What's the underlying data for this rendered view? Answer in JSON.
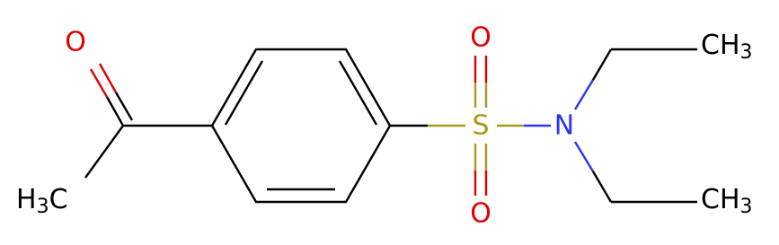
{
  "atoms": [
    {
      "label": "O"
    },
    {
      "prefix": "H",
      "subscript": "3",
      "suffix": "C"
    },
    {
      "label": "S"
    },
    {
      "label": "O"
    },
    {
      "label": "O"
    },
    {
      "label": "N"
    },
    {
      "label": "CH",
      "subscript": "3"
    },
    {
      "label": "CH",
      "subscript": "3"
    }
  ]
}
